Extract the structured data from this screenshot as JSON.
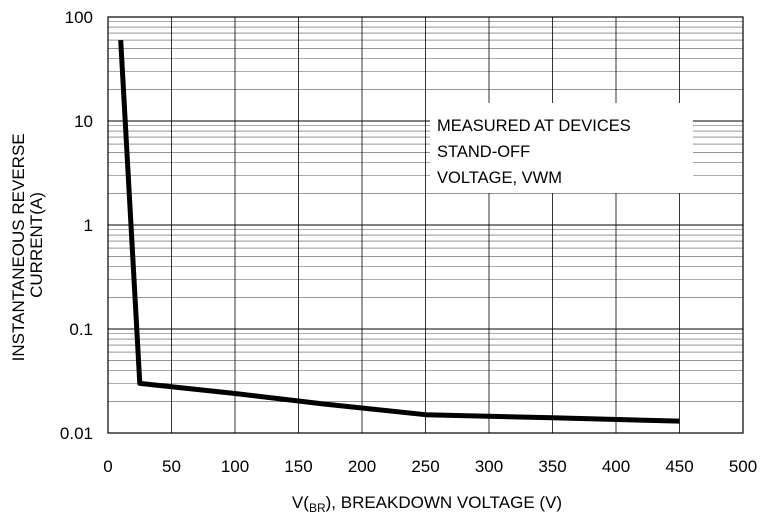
{
  "chart_data": {
    "type": "line",
    "xlabel": {
      "prefix": "V",
      "paren_open": "(",
      "subscript": "BR",
      "paren_close": ")",
      "suffix": ", BREAKDOWN VOLTAGE (V)"
    },
    "ylabel_lines": [
      "INSTANTANEOUS REVERSE",
      "CURRENT(A)"
    ],
    "y_scale": "log",
    "xlim": [
      0,
      500
    ],
    "ylim": [
      0.01,
      100
    ],
    "x_ticks": [
      "0",
      "50",
      "100",
      "150",
      "200",
      "250",
      "300",
      "350",
      "400",
      "450",
      "500"
    ],
    "y_ticks": [
      "0.01",
      "0.1",
      "1",
      "10",
      "100"
    ],
    "grid": true,
    "annotation_lines": [
      "MEASURED AT DEVICES",
      "STAND-OFF",
      "VOLTAGE, VWM"
    ],
    "series": [
      {
        "points": [
          {
            "x": 10,
            "y": 60
          },
          {
            "x": 25,
            "y": 0.03
          },
          {
            "x": 100,
            "y": 0.024
          },
          {
            "x": 170,
            "y": 0.019
          },
          {
            "x": 250,
            "y": 0.015
          },
          {
            "x": 350,
            "y": 0.014
          },
          {
            "x": 450,
            "y": 0.013
          }
        ]
      }
    ]
  }
}
